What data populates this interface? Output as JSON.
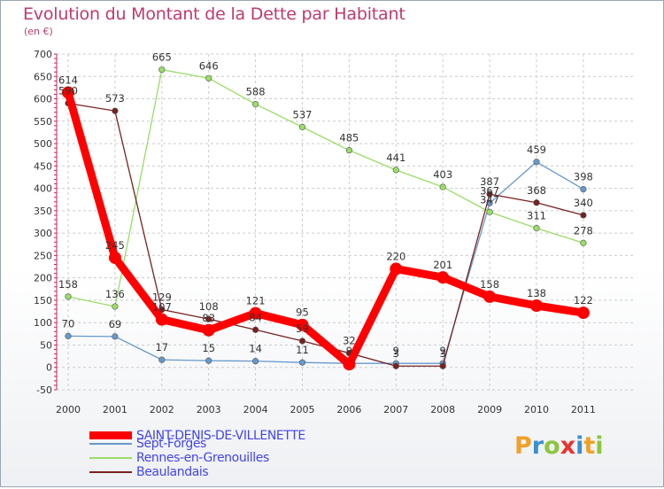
{
  "header": {
    "title": "Evolution du Montant de la Dette par Habitant",
    "subtitle": "(en €)"
  },
  "logo": {
    "letters": [
      "P",
      "r",
      "o",
      "x",
      "i",
      "t",
      "i"
    ],
    "colors": [
      "#f1a127",
      "#3a8fd0",
      "#8cc63e",
      "#e8332f",
      "#3a8fd0",
      "#f1a127",
      "#8cc63e"
    ]
  },
  "chart_data": {
    "type": "line",
    "title": "Evolution du Montant de la Dette par Habitant",
    "subtitle": "(en €)",
    "x": [
      "2000",
      "2001",
      "2002",
      "2003",
      "2004",
      "2005",
      "2006",
      "2007",
      "2008",
      "2009",
      "2010",
      "2011"
    ],
    "ylim": [
      -50,
      700
    ],
    "yticks": [
      "-50",
      "0",
      "50",
      "100",
      "150",
      "200",
      "250",
      "300",
      "350",
      "400",
      "450",
      "500",
      "550",
      "600",
      "650",
      "700"
    ],
    "grid": true,
    "legend_position": "bottom-left",
    "series": [
      {
        "name": "SAINT-DENIS-DE-VILLENETTE",
        "color": "#ff0000",
        "values": [
          614,
          245,
          107,
          83,
          121,
          95,
          7,
          220,
          201,
          158,
          138,
          122
        ],
        "labels": [
          "614",
          "245",
          "107",
          "83",
          "121",
          "95",
          "",
          "220",
          "201",
          "158",
          "138",
          "122"
        ]
      },
      {
        "name": "Sept-Forges",
        "color": "#6699cc",
        "values": [
          70,
          69,
          17,
          15,
          14,
          11,
          9,
          9,
          9,
          367,
          459,
          398
        ],
        "labels": [
          "70",
          "69",
          "17",
          "15",
          "14",
          "11",
          "9",
          "9",
          "9",
          "367",
          "459",
          "398"
        ]
      },
      {
        "name": "Rennes-en-Grenouilles",
        "color": "#99dd66",
        "values": [
          158,
          136,
          665,
          646,
          588,
          537,
          485,
          441,
          403,
          347,
          311,
          278
        ],
        "labels": [
          "158",
          "136",
          "665",
          "646",
          "588",
          "537",
          "485",
          "441",
          "403",
          "347",
          "311",
          "278"
        ]
      },
      {
        "name": "Beaulandais",
        "color": "#772222",
        "values": [
          590,
          573,
          129,
          108,
          84,
          59,
          32,
          3,
          3,
          387,
          368,
          340
        ],
        "labels": [
          "590",
          "573",
          "129",
          "108",
          "84",
          "59",
          "32",
          "3",
          "3",
          "387",
          "368",
          "340"
        ]
      }
    ]
  }
}
